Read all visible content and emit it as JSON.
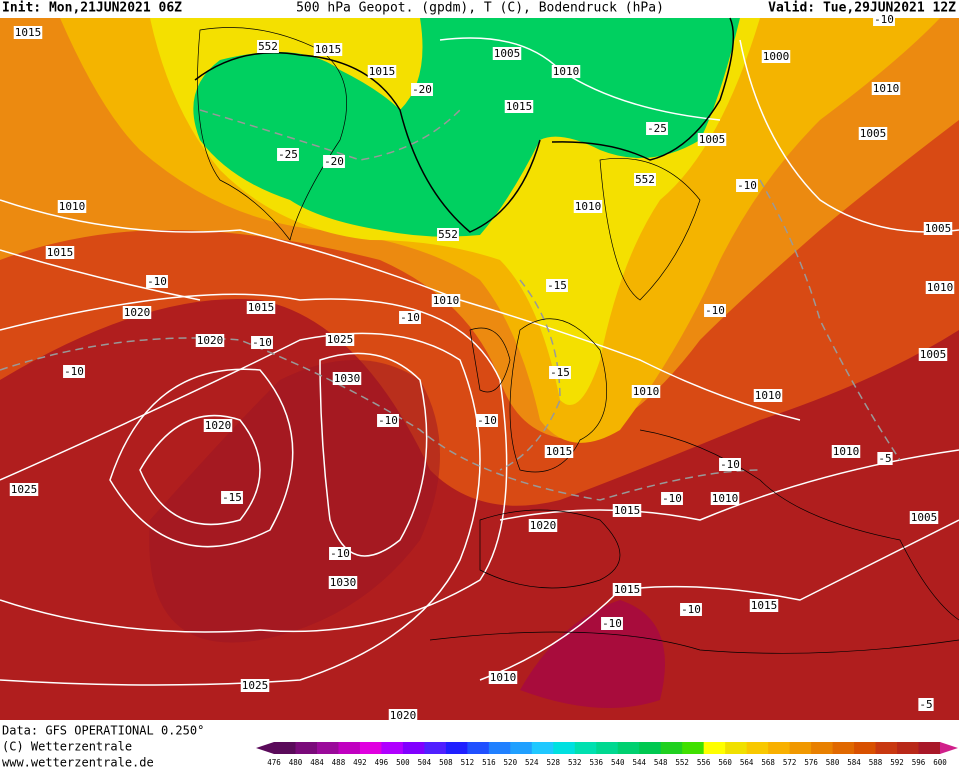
{
  "header": {
    "init": "Init: Mon,21JUN2021 06Z",
    "title": "500 hPa Geopot. (gpdm), T (C), Bodendruck (hPa)",
    "valid": "Valid: Tue,29JUN2021 12Z"
  },
  "footer": {
    "data": "Data: GFS OPERATIONAL 0.250°",
    "copyright": "(C) Wetterzentrale",
    "url": "www.wetterzentrale.de"
  },
  "legend": {
    "labels": [
      "476",
      "480",
      "484",
      "488",
      "492",
      "496",
      "500",
      "504",
      "508",
      "512",
      "516",
      "520",
      "524",
      "528",
      "532",
      "536",
      "540",
      "544",
      "548",
      "552",
      "556",
      "560",
      "564",
      "568",
      "572",
      "576",
      "580",
      "584",
      "588",
      "592",
      "596",
      "600"
    ],
    "colors": [
      "#5a0a5a",
      "#7a0a7a",
      "#9a0a9a",
      "#c000c0",
      "#e000e0",
      "#b000ff",
      "#8000ff",
      "#5020ff",
      "#2020ff",
      "#2050ff",
      "#2080ff",
      "#20a0ff",
      "#20c8ff",
      "#00e0e0",
      "#00e0b0",
      "#00d890",
      "#00d070",
      "#00c850",
      "#20d020",
      "#40e000",
      "#ffff00",
      "#f0e000",
      "#f8c800",
      "#f8b000",
      "#f09800",
      "#e88000",
      "#e06800",
      "#d85000",
      "#c83810",
      "#b82818",
      "#a81828"
    ]
  },
  "pressure_labels": [
    "1015",
    "552",
    "1015",
    "1015",
    "1005",
    "1010",
    "1000",
    "1010",
    "1015",
    "1005",
    "1005",
    "1010",
    "552",
    "1010",
    "552",
    "1005",
    "1015",
    "1010",
    "1015",
    "1010",
    "1020",
    "1020",
    "1025",
    "1005",
    "1030",
    "1010",
    "1010",
    "1020",
    "1015",
    "1010",
    "1025",
    "1010",
    "1015",
    "1005",
    "1020",
    "1030",
    "1015",
    "1015",
    "1010",
    "1025",
    "1020"
  ],
  "temperature_labels": [
    "-20",
    "-25",
    "-20",
    "-25",
    "-10",
    "-10",
    "-15",
    "-10",
    "-10",
    "-10",
    "-10",
    "-15",
    "-10",
    "-10",
    "-10",
    "-5",
    "-15",
    "-10",
    "-10",
    "-10",
    "-10",
    "-5",
    "-10"
  ]
}
